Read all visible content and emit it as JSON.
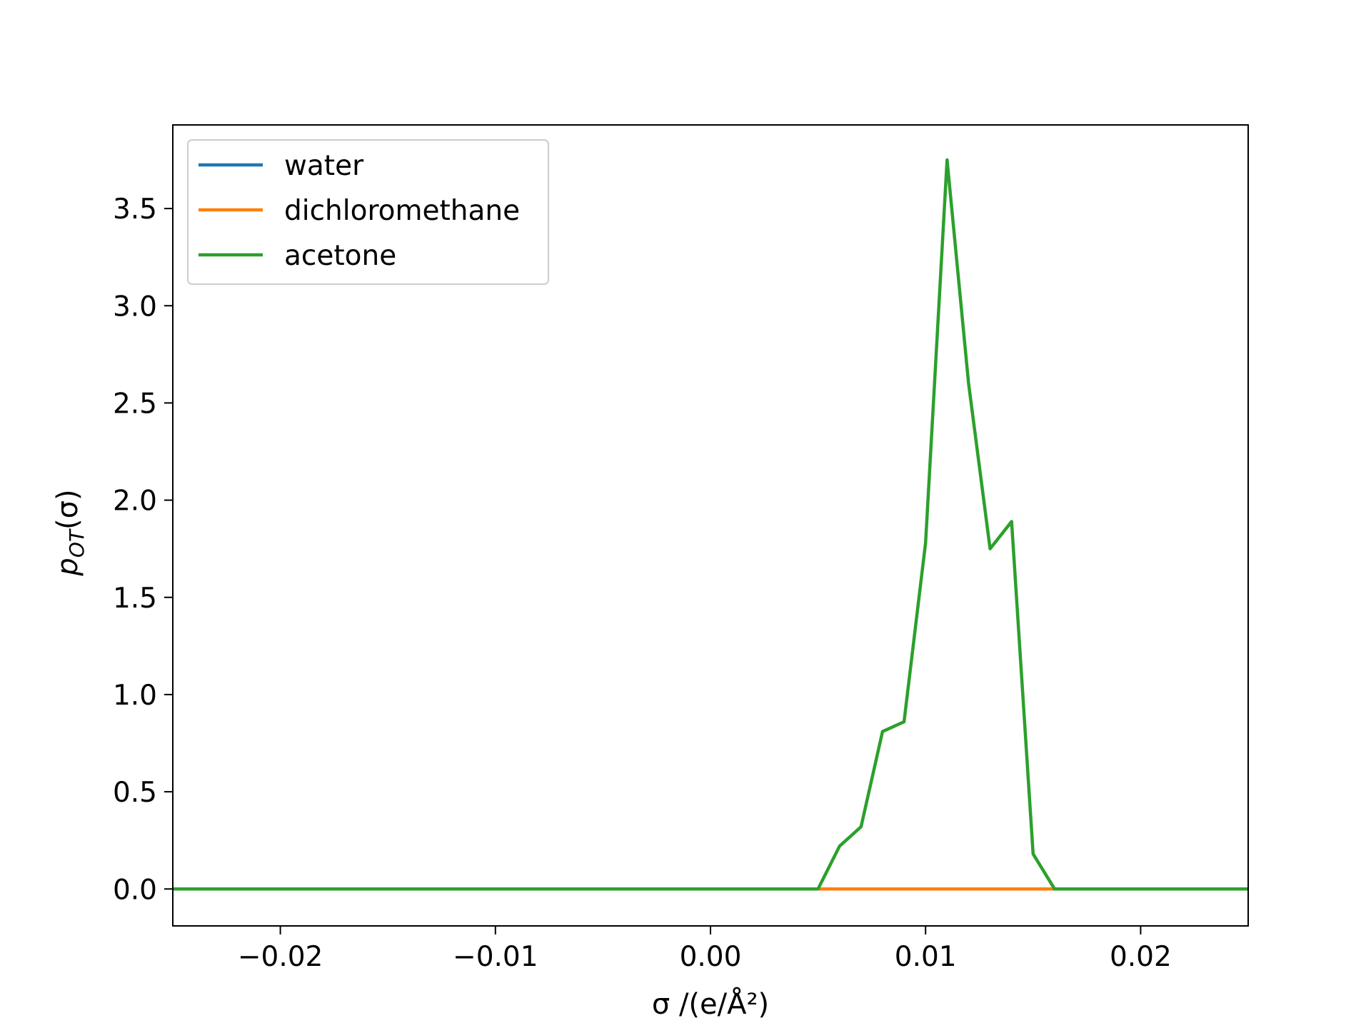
{
  "chart_data": {
    "type": "line",
    "title": "",
    "xlabel": "σ /(e/Å²)",
    "ylabel": "pOT(σ)",
    "xlim": [
      -0.025,
      0.025
    ],
    "ylim": [
      -0.19,
      3.93
    ],
    "x_ticks": [
      "−0.02",
      "−0.01",
      "0.00",
      "0.01",
      "0.02"
    ],
    "y_ticks": [
      "0.0",
      "0.5",
      "1.0",
      "1.5",
      "2.0",
      "2.5",
      "3.0",
      "3.5"
    ],
    "legend_position": "upper-left",
    "grid": false,
    "series": [
      {
        "name": "water",
        "color": "#1f77b4",
        "x": [
          -0.025,
          0.025
        ],
        "y": [
          0,
          0
        ]
      },
      {
        "name": "dichloromethane",
        "color": "#ff7f0e",
        "x": [
          -0.025,
          0.025
        ],
        "y": [
          0,
          0
        ]
      },
      {
        "name": "acetone",
        "color": "#2ca02c",
        "x": [
          -0.025,
          0.005,
          0.006,
          0.007,
          0.008,
          0.009,
          0.01,
          0.011,
          0.012,
          0.013,
          0.014,
          0.015,
          0.016,
          0.025
        ],
        "y": [
          0,
          0,
          0.22,
          0.32,
          0.81,
          0.86,
          1.78,
          3.75,
          2.6,
          1.75,
          1.89,
          0.18,
          0,
          0
        ]
      }
    ]
  }
}
